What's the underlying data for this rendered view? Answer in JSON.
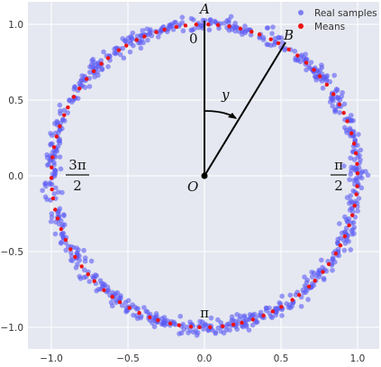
{
  "chart_data": {
    "type": "scatter",
    "title": "",
    "xlabel": "",
    "ylabel": "",
    "xlim": [
      -1.1,
      1.1
    ],
    "ylim": [
      -1.1,
      1.1
    ],
    "x_ticks": [
      "−1.0",
      "−0.5",
      "0.0",
      "0.5",
      "1.0"
    ],
    "y_ticks": [
      "1.0",
      "0.5",
      "0.0",
      "−0.5",
      "−1.0"
    ],
    "x_tick_values": [
      -1.0,
      -0.5,
      0.0,
      0.5,
      1.0
    ],
    "y_tick_values": [
      1.0,
      0.5,
      0.0,
      -0.5,
      -1.0
    ],
    "grid": true,
    "legend_position": "top-right",
    "background": "#e5e8f0",
    "series": [
      {
        "name": "Real samples",
        "color": "#5b5bf5",
        "shape": "ring of noisy points around the unit circle",
        "radius": 1.0,
        "noise": 0.025,
        "count": 800
      },
      {
        "name": "Means",
        "color": "#ee1111",
        "shape": "points on the unit circle",
        "radius": 1.0,
        "count": 90
      }
    ],
    "annotations": {
      "point_A": {
        "text": "A",
        "x": 0.0,
        "y": 1.0
      },
      "point_B": {
        "text": "B",
        "x": 0.53,
        "y": 0.85
      },
      "origin": {
        "text": "O",
        "x": 0.0,
        "y": 0.0
      },
      "angle": {
        "text": "y"
      },
      "angle_top": {
        "text": "0"
      },
      "angle_right": {
        "num": "π",
        "den": "2"
      },
      "angle_bottom": {
        "text": "π"
      },
      "angle_left": {
        "num": "3π",
        "den": "2"
      }
    }
  }
}
